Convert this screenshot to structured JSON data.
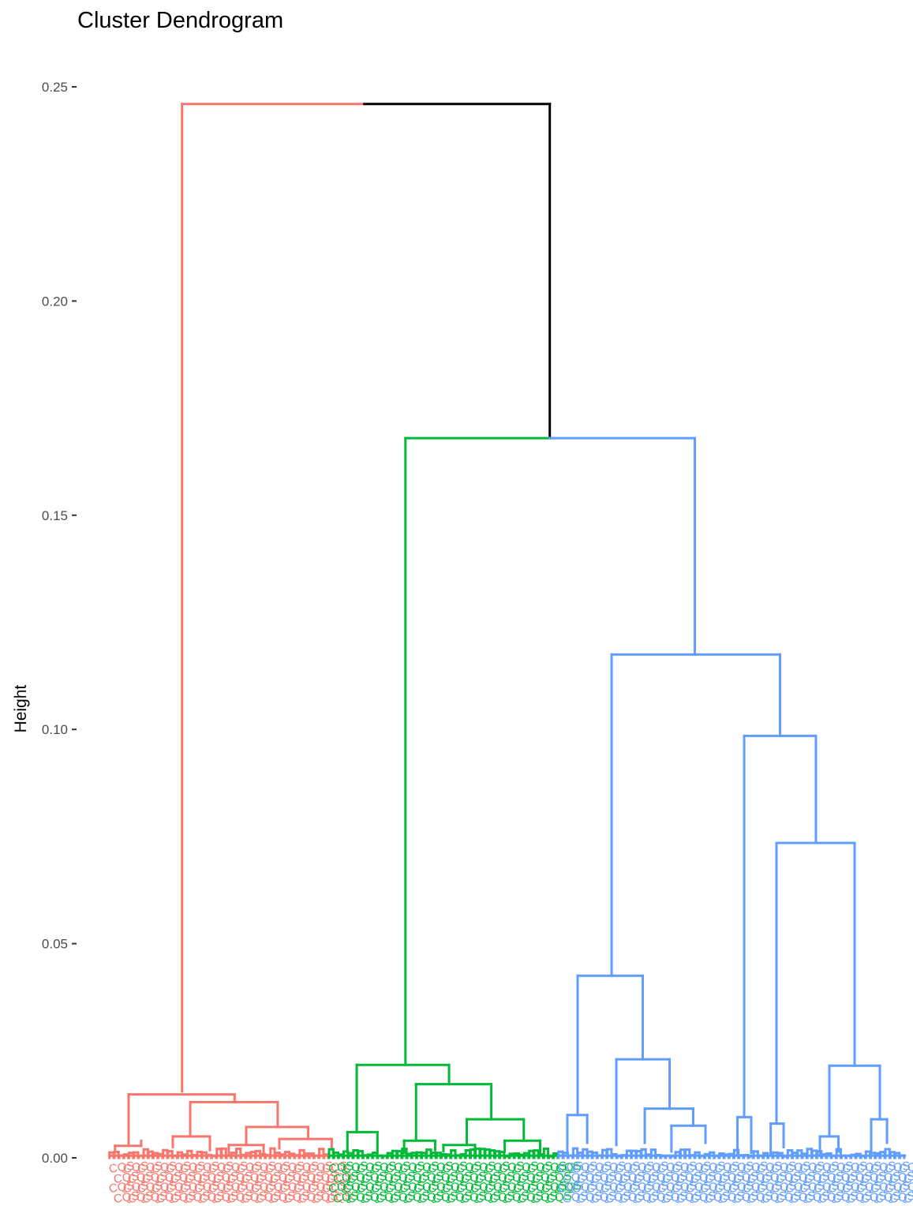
{
  "chart_data": {
    "type": "dendrogram",
    "title": "Cluster Dendrogram",
    "xlabel": "",
    "ylabel": "Height",
    "ylim": [
      0,
      0.25
    ],
    "y_ticks": [
      "0.00",
      "0.05",
      "0.10",
      "0.15",
      "0.20",
      "0.25"
    ],
    "grid": false,
    "k": 3,
    "cluster_colors": [
      "#F8766D",
      "#00BA38",
      "#619CFF"
    ],
    "root_color": "#000000",
    "root": {
      "h": 0.246,
      "x": 0.475
    },
    "merges": [
      {
        "cluster": 0,
        "h": 0.246,
        "x0": 0.1,
        "x1": 0.475,
        "color": "#F8766D"
      },
      {
        "cluster": -1,
        "h": 0.246,
        "x0": 0.3,
        "x1": 0.548,
        "color": "#000000"
      },
      {
        "cluster": 1,
        "h": 0.168,
        "x0": 0.379,
        "x1": 0.548,
        "color": "#00BA38"
      },
      {
        "cluster": 2,
        "h": 0.168,
        "x0": 0.548,
        "x1": 0.733,
        "color": "#619CFF"
      }
    ],
    "tree": {
      "children": [
        {
          "cluster": 0,
          "h": 0.246,
          "x": 0.1,
          "children": [
            {
              "h": 0.0148,
              "x0": 0.034,
              "x1": 0.17,
              "children": [
                {
                  "h": 0.003,
                  "x0": 0.01,
                  "x1": 0.032
                },
                {
                  "h": 0.013,
                  "x0": 0.096,
                  "x1": 0.214
                }
              ]
            }
          ]
        },
        {
          "cluster": 1,
          "h": 0.168,
          "x": 0.379,
          "children": [
            {
              "h": 0.0217,
              "x0": 0.32,
              "x1": 0.434
            },
            {
              "h": 0.0172,
              "x0": 0.387,
              "x1": 0.481
            },
            {
              "h": 0.009,
              "x0": 0.478,
              "x1": 0.528
            }
          ]
        },
        {
          "cluster": 2,
          "h": 0.168,
          "x": 0.733,
          "children": [
            {
              "h": 0.1175,
              "x0": 0.637,
              "x1": 0.824
            },
            {
              "h": 0.0985,
              "x0": 0.782,
              "x1": 0.862
            },
            {
              "h": 0.0735,
              "x0": 0.822,
              "x1": 0.909
            },
            {
              "h": 0.0425,
              "x0": 0.6,
              "x1": 0.674
            },
            {
              "h": 0.0215,
              "x0": 0.877,
              "x1": 0.937
            }
          ]
        }
      ]
    },
    "leaf_label_colors": [
      "#F8766D",
      "#00BA38",
      "#619CFF"
    ],
    "leaf_label_text": "CQS"
  }
}
